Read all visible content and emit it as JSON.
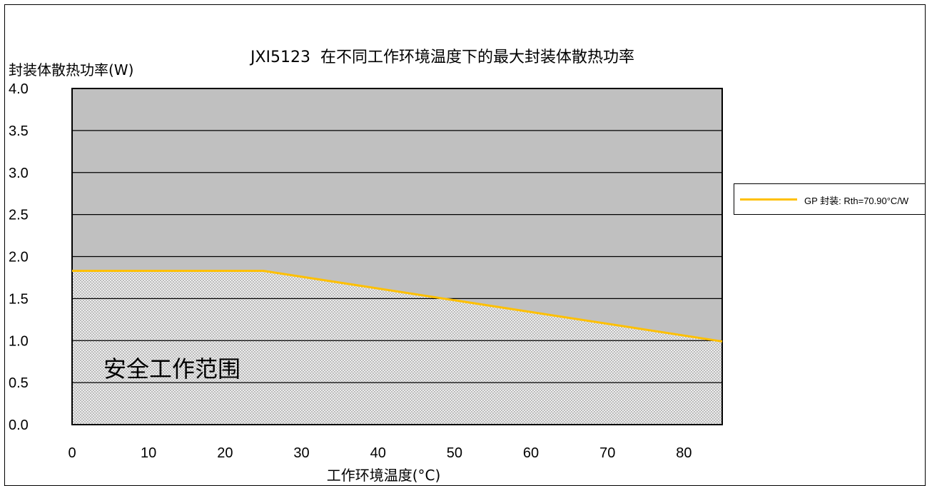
{
  "chart_data": {
    "type": "area",
    "title": "JXI5123  在不同工作环境温度下的最大封装体散热功率",
    "xlabel": "工作环境温度(°C)",
    "ylabel": "封装体散热功率(W)",
    "xlim": [
      0,
      85
    ],
    "ylim": [
      0,
      4.0
    ],
    "x_ticks": [
      "0",
      "10",
      "20",
      "30",
      "40",
      "50",
      "60",
      "70",
      "80"
    ],
    "y_ticks": [
      "0.0",
      "0.5",
      "1.0",
      "1.5",
      "2.0",
      "2.5",
      "3.0",
      "3.5",
      "4.0"
    ],
    "grid": true,
    "legend_position": "right",
    "series": [
      {
        "name": "GP 封装: Rth=70.90°C/W",
        "color": "#ffc000",
        "x": [
          0,
          25,
          85
        ],
        "y": [
          1.83,
          1.83,
          0.99
        ]
      }
    ],
    "annotations": [
      "安全工作范围"
    ],
    "colors": {
      "plot_background": "#c0c0c0",
      "safe_area_pattern": "#d9d9d9",
      "line": "#ffc000"
    }
  }
}
